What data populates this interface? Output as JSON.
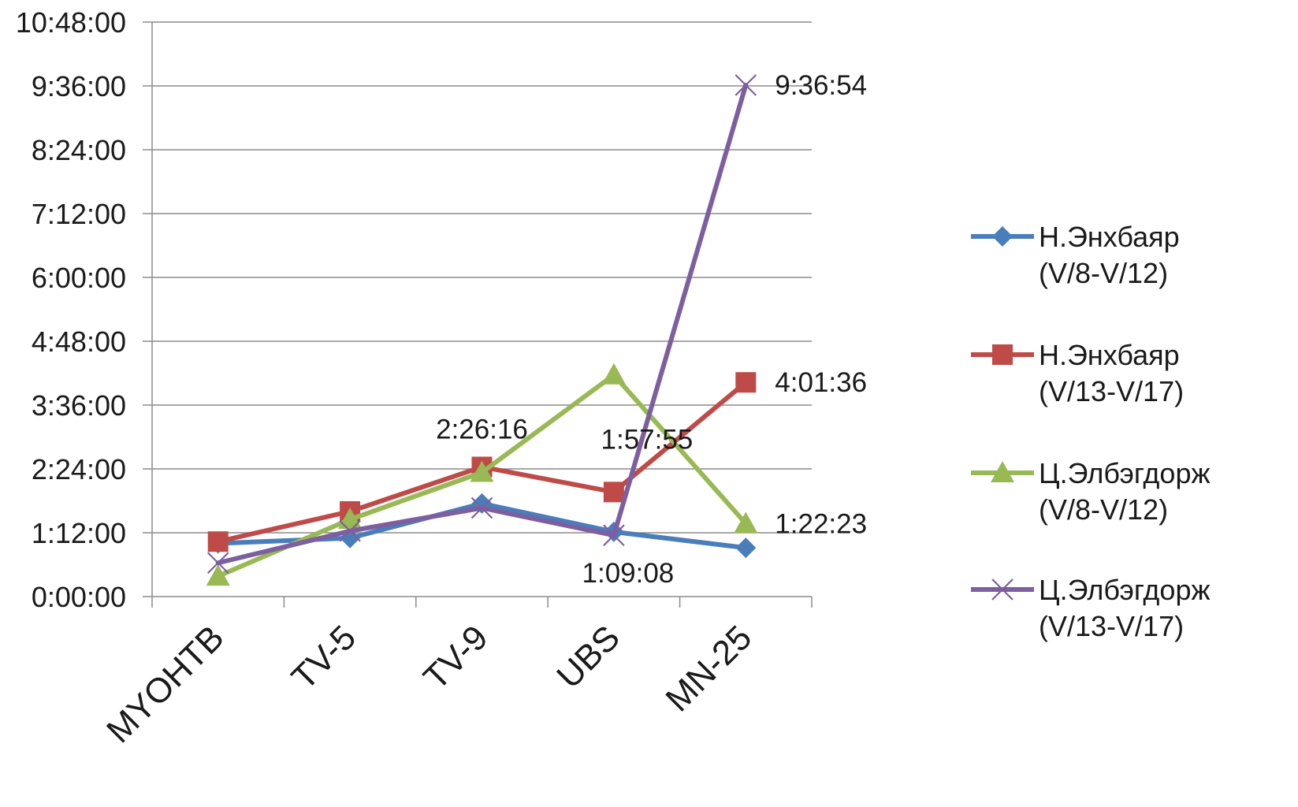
{
  "chart_data": {
    "type": "line",
    "categories": [
      "MYOHTB",
      "TV-5",
      "TV-9",
      "UBS",
      "MN-25"
    ],
    "y_unit": "h:mm:ss",
    "ylim": [
      "0:00:00",
      "10:48:00"
    ],
    "yticks": [
      "0:00:00",
      "1:12:00",
      "2:24:00",
      "3:36:00",
      "4:48:00",
      "6:00:00",
      "7:12:00",
      "8:24:00",
      "9:36:00",
      "10:48:00"
    ],
    "grid": true,
    "legend": "right",
    "series": [
      {
        "name": "Н.Энхбаяр (V/8-V/12)",
        "name_lines": [
          "Н.Энхбаяр",
          "(V/8-V/12)"
        ],
        "color": "#4a7ebb",
        "marker": "diamond",
        "values": [
          "1:00:00",
          "1:06:00",
          "1:45:00",
          "1:13:00",
          "0:55:00"
        ]
      },
      {
        "name": "Н.Энхбаяр (V/13-V/17)",
        "name_lines": [
          "Н.Энхбаяр",
          "(V/13-V/17)"
        ],
        "color": "#be4b48",
        "marker": "square",
        "values": [
          "1:02:00",
          "1:36:00",
          "2:26:16",
          "1:57:55",
          "4:01:36"
        ]
      },
      {
        "name": "Ц.Элбэгдорж (V/8-V/12)",
        "name_lines": [
          "Ц.Элбэгдорж",
          "(V/8-V/12)"
        ],
        "color": "#98b954",
        "marker": "triangle",
        "values": [
          "0:23:00",
          "1:27:00",
          "2:20:00",
          "4:10:00",
          "1:22:23"
        ]
      },
      {
        "name": "Ц.Элбэгдорж (V/13-V/17)",
        "name_lines": [
          "Ц.Элбэгдорж",
          "(V/13-V/17)"
        ],
        "color": "#7d5fa0",
        "marker": "x",
        "values": [
          "0:38:00",
          "1:14:00",
          "1:40:00",
          "1:09:08",
          "9:36:54"
        ]
      }
    ],
    "data_labels": [
      {
        "text": "2:26:16",
        "series": 1,
        "index": 2,
        "pos": "above"
      },
      {
        "text": "1:57:55",
        "series": 1,
        "index": 3,
        "pos": "above-right"
      },
      {
        "text": "4:01:36",
        "series": 1,
        "index": 4,
        "pos": "right"
      },
      {
        "text": "1:09:08",
        "series": 3,
        "index": 3,
        "pos": "below"
      },
      {
        "text": "9:36:54",
        "series": 3,
        "index": 4,
        "pos": "right"
      },
      {
        "text": "1:22:23",
        "series": 2,
        "index": 4,
        "pos": "right"
      }
    ]
  }
}
